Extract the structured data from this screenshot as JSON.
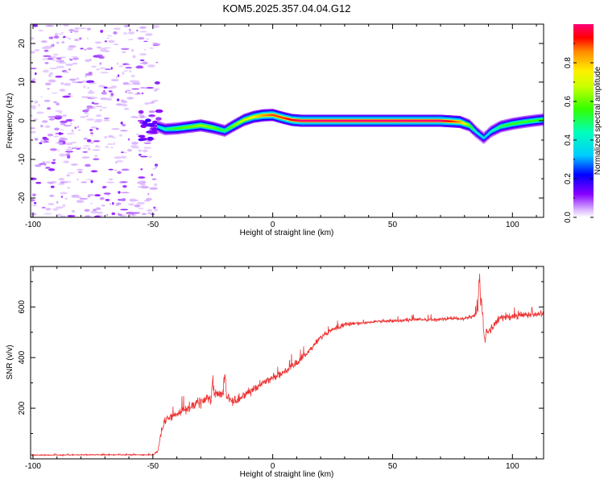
{
  "title": "KOM5.2025.357.04.04.G12",
  "chart_data": [
    {
      "type": "heatmap",
      "xlabel": "Height of straight line (km)",
      "ylabel": "Frequency (Hz)",
      "xlim": [
        -101,
        113
      ],
      "ylim": [
        -25,
        25
      ],
      "xticks": [
        -100,
        -50,
        0,
        50,
        100
      ],
      "yticks": [
        -20,
        -10,
        0,
        10,
        20
      ],
      "colorbar": {
        "label": "Normalized spectral amplitude",
        "range": [
          0,
          1
        ],
        "ticks": [
          0.0,
          0.2,
          0.4,
          0.6,
          0.8
        ]
      },
      "trace": {
        "description": "Doppler frequency ridge vs height",
        "x": [
          -48,
          -45,
          -40,
          -35,
          -30,
          -25,
          -20,
          -17,
          -12,
          -8,
          -4,
          0,
          4,
          8,
          12,
          20,
          30,
          40,
          50,
          60,
          70,
          78,
          82,
          85,
          88,
          91,
          95,
          100,
          105,
          110,
          113
        ],
        "y": [
          -1.5,
          -2.2,
          -2.0,
          -1.6,
          -1.2,
          -1.8,
          -2.6,
          -1.5,
          0.2,
          1.0,
          1.4,
          1.5,
          0.8,
          0.2,
          0.0,
          0.0,
          0.0,
          0.0,
          0.0,
          0.0,
          0.0,
          -0.3,
          -1.2,
          -3.0,
          -4.5,
          -2.8,
          -1.5,
          -0.8,
          -0.3,
          0.1,
          0.3
        ],
        "amplitude": [
          0.35,
          0.45,
          0.55,
          0.6,
          0.65,
          0.6,
          0.5,
          0.6,
          0.7,
          0.75,
          0.85,
          0.9,
          0.9,
          0.95,
          1.0,
          1.0,
          1.0,
          1.0,
          1.0,
          1.0,
          1.0,
          0.85,
          0.6,
          0.4,
          0.35,
          0.4,
          0.5,
          0.55,
          0.55,
          0.55,
          0.55
        ]
      }
    },
    {
      "type": "line",
      "xlabel": "Height of straight line (km)",
      "ylabel": "SNR (v/v)",
      "xlim": [
        -101,
        113
      ],
      "ylim": [
        0,
        760
      ],
      "xticks": [
        -100,
        -50,
        0,
        50,
        100
      ],
      "yticks": [
        200,
        400,
        600
      ],
      "series": [
        {
          "name": "SNR",
          "color": "#ee3333",
          "x": [
            -101,
            -90,
            -80,
            -70,
            -60,
            -50,
            -48,
            -47,
            -45,
            -40,
            -35,
            -30,
            -25,
            -20,
            -18,
            -15,
            -10,
            -5,
            0,
            5,
            10,
            15,
            20,
            25,
            30,
            40,
            50,
            60,
            70,
            80,
            84,
            86,
            87,
            88,
            90,
            95,
            100,
            105,
            113
          ],
          "values": [
            15,
            15,
            16,
            16,
            16,
            16,
            30,
            80,
            155,
            175,
            205,
            225,
            250,
            265,
            230,
            230,
            265,
            295,
            320,
            345,
            375,
            425,
            480,
            510,
            530,
            540,
            545,
            550,
            550,
            555,
            565,
            590,
            620,
            520,
            500,
            560,
            560,
            570,
            575
          ],
          "noise": [
            3,
            3,
            3,
            3,
            3,
            3,
            8,
            15,
            22,
            25,
            28,
            30,
            32,
            32,
            28,
            26,
            25,
            22,
            20,
            20,
            18,
            18,
            16,
            14,
            12,
            10,
            10,
            10,
            10,
            10,
            12,
            30,
            40,
            35,
            25,
            18,
            18,
            16,
            16
          ],
          "spikes": [
            {
              "x": -20,
              "value": 360
            },
            {
              "x": -25,
              "value": 330
            },
            {
              "x": 86.2,
              "value": 755
            },
            {
              "x": 88.5,
              "value": 440
            }
          ]
        }
      ]
    }
  ]
}
